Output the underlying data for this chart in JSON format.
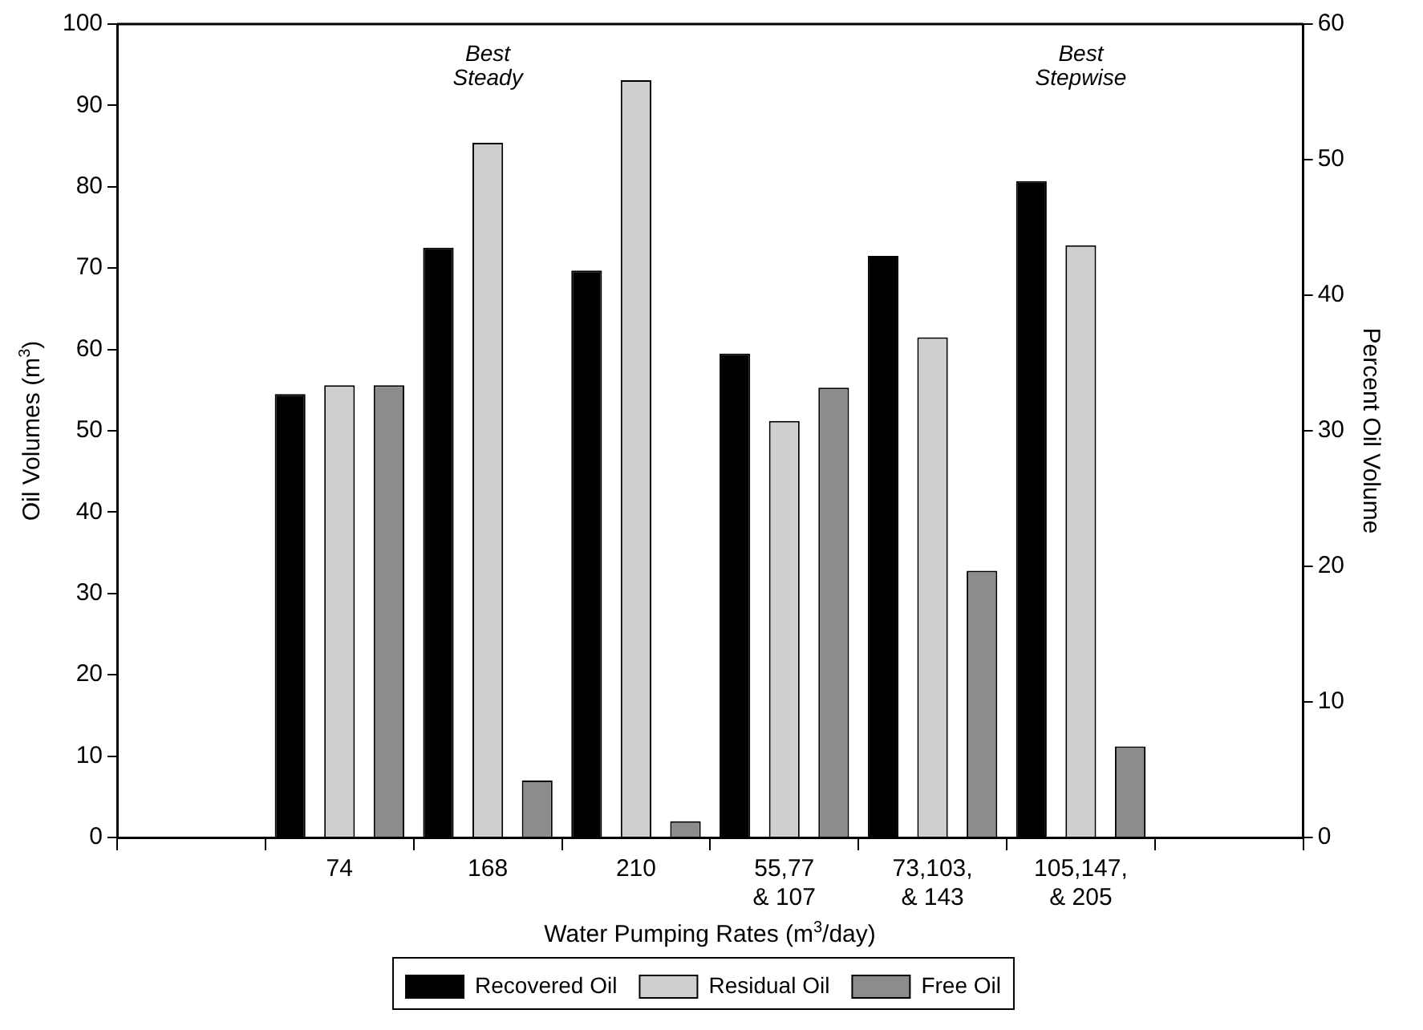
{
  "chart_data": {
    "type": "bar",
    "xlabel": "Water Pumping Rates  (m$^{3}$/day)",
    "ylabel": "Oil Volumes  (m$^{3}$)",
    "y2label": "Percent Oil Volume",
    "categories": [
      null,
      "74",
      "168",
      "210",
      "55,77\n& 107",
      "73,103,\n& 143",
      "105,147,\n& 205",
      null
    ],
    "series": [
      {
        "name": "Recovered Oil",
        "color": "#000000",
        "values": [
          null,
          54.5,
          72.5,
          69.7,
          59.5,
          71.5,
          80.7,
          null
        ]
      },
      {
        "name": "Residual Oil",
        "color": "#cfcfcf",
        "values": [
          null,
          55.6,
          85.4,
          93.1,
          51.2,
          61.5,
          72.8,
          null
        ]
      },
      {
        "name": "Free Oil",
        "color": "#8c8c8c",
        "values": [
          null,
          55.6,
          7,
          2,
          55.3,
          32.8,
          11.2,
          null
        ]
      }
    ],
    "ylim": [
      0,
      100
    ],
    "yticks": [
      0,
      10,
      20,
      30,
      40,
      50,
      60,
      70,
      80,
      90,
      100
    ],
    "y2lim": [
      0,
      60
    ],
    "y2ticks": [
      0,
      10,
      20,
      30,
      40,
      50,
      60
    ],
    "annotations": [
      "Best\nSteady",
      "Best\nStepwise"
    ],
    "grid": false,
    "legend": "bottom"
  }
}
